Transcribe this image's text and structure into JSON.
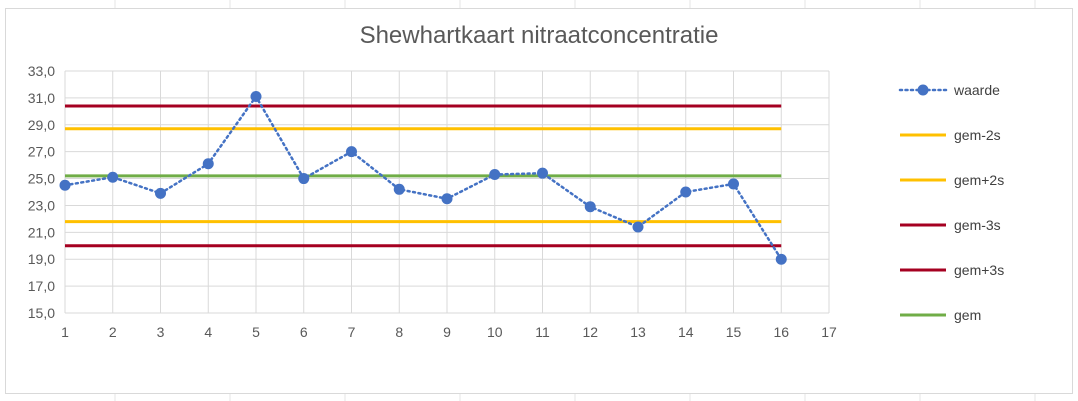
{
  "chart_data": {
    "type": "line",
    "title": "Shewhartkaart nitraatconcentratie",
    "xlabel": "",
    "ylabel": "",
    "x_ticks": [
      "1",
      "2",
      "3",
      "4",
      "5",
      "6",
      "7",
      "8",
      "9",
      "10",
      "11",
      "12",
      "13",
      "14",
      "15",
      "16",
      "17"
    ],
    "y_ticks": [
      "15,0",
      "17,0",
      "19,0",
      "21,0",
      "23,0",
      "25,0",
      "27,0",
      "29,0",
      "31,0",
      "33,0"
    ],
    "xlim": [
      1,
      17
    ],
    "ylim": [
      15,
      33
    ],
    "grid": true,
    "legend_position": "right",
    "series": [
      {
        "name": "waarde",
        "style": "dotted-markers",
        "color": "#4472c4",
        "x": [
          1,
          2,
          3,
          4,
          5,
          6,
          7,
          8,
          9,
          10,
          11,
          12,
          13,
          14,
          15,
          16
        ],
        "values": [
          24.5,
          25.1,
          23.9,
          26.1,
          31.1,
          25.0,
          27.0,
          24.2,
          23.5,
          25.3,
          25.4,
          22.9,
          21.4,
          24.0,
          24.6,
          19.0
        ]
      },
      {
        "name": "gem-2s",
        "style": "line",
        "color": "#ffc000",
        "x": [
          1,
          16
        ],
        "values": [
          21.8,
          21.8
        ]
      },
      {
        "name": "gem+2s",
        "style": "line",
        "color": "#ffc000",
        "x": [
          1,
          16
        ],
        "values": [
          28.7,
          28.7
        ]
      },
      {
        "name": "gem-3s",
        "style": "line",
        "color": "#a50021",
        "x": [
          1,
          16
        ],
        "values": [
          20.0,
          20.0
        ]
      },
      {
        "name": "gem+3s",
        "style": "line",
        "color": "#a50021",
        "x": [
          1,
          16
        ],
        "values": [
          30.4,
          30.4
        ]
      },
      {
        "name": "gem",
        "style": "line",
        "color": "#70ad47",
        "x": [
          1,
          16
        ],
        "values": [
          25.2,
          25.2
        ]
      }
    ],
    "legend_order": [
      "waarde",
      "gem-2s",
      "gem+2s",
      "gem-3s",
      "gem+3s",
      "gem"
    ]
  }
}
